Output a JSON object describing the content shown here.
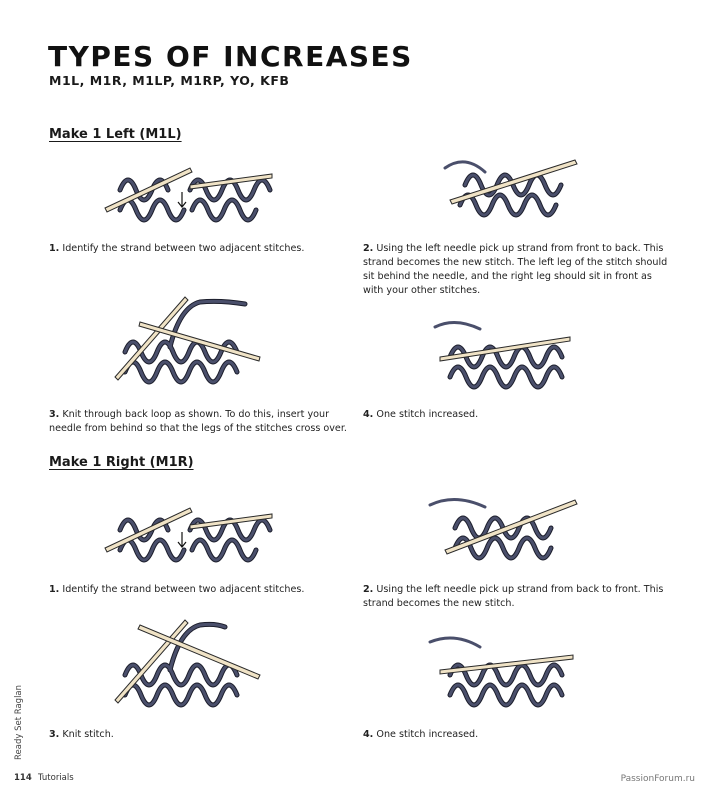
{
  "title": "TYPES OF INCREASES",
  "subtitle": "M1L, M1R, M1LP, M1RP, YO, KFB",
  "sections": [
    {
      "heading": "Make 1 Left (M1L)",
      "steps": [
        {
          "num": "1.",
          "text": "Identify the strand between two adjacent stitches."
        },
        {
          "num": "2.",
          "text": "Using the left needle pick up strand from front to back. This strand becomes the new stitch. The left leg of the stitch should sit behind the needle, and the right leg should sit in front as with your other stitches."
        },
        {
          "num": "3.",
          "text": "Knit through back loop as shown. To do this, insert your needle from behind so that the legs of the stitches cross over."
        },
        {
          "num": "4.",
          "text": "One stitch increased."
        }
      ]
    },
    {
      "heading": "Make 1 Right (M1R)",
      "steps": [
        {
          "num": "1.",
          "text": "Identify the strand between two adjacent stitches."
        },
        {
          "num": "2.",
          "text": "Using the left needle pick up strand from back to front. This strand becomes the new stitch."
        },
        {
          "num": "3.",
          "text": "Knit stitch."
        },
        {
          "num": "4.",
          "text": "One stitch increased."
        }
      ]
    }
  ],
  "side_text": "Ready Set Raglan",
  "footer": {
    "page": "114",
    "section": "Tutorials"
  },
  "watermark": "PassionForum.ru",
  "colors": {
    "yarn": "#4a4f6b",
    "yarn_outline": "#1c1e2c",
    "needle": "#f0e3c6",
    "needle_outline": "#2a2a2a"
  }
}
